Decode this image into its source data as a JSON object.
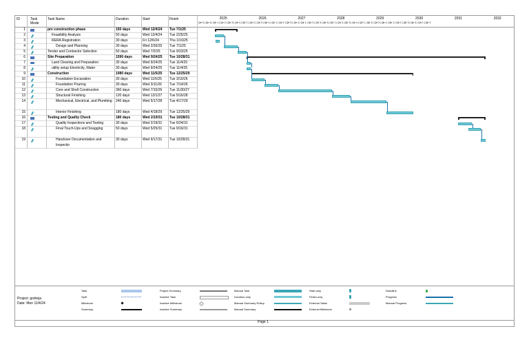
{
  "columns": {
    "id": "ID",
    "mode": "Task Mode",
    "name": "Task Name",
    "duration": "Duration",
    "start": "Start",
    "finish": "Finish"
  },
  "timeline": {
    "years": [
      "2025",
      "2026",
      "2027",
      "2028",
      "2029",
      "2030",
      "2031",
      "2032"
    ],
    "quarters": "Qtr 3 | Qtr 4 | Qtr 1 | Qtr 2 | Qtr 3 | Qtr 4 | Qtr 1 | Qtr 2 | Qtr 3 | Qtr 4 | Qtr 1 | Qtr 2 | Qtr 3 | Qtr 4 | Qtr 1 | Qtr 2 | Qtr 3 | Qtr 4 | Qtr 1 | Qtr 2 | Qtr 3 | Qtr 4 | Qtr 1 | Qtr 2 | Qtr 3 | Qtr 4 | Qtr 1 | Qtr 2 | Qtr 3 | Qtr 4 | Qtr 1 | Qtr 2"
  },
  "tasks": [
    {
      "id": "1",
      "mode": "auto",
      "name": "pre construction phase",
      "duration": "150 days",
      "start": "Wed 12/4/24",
      "finish": "Tue 7/1/25",
      "bold": true,
      "indent": 0
    },
    {
      "id": "2",
      "mode": "manual",
      "name": "Feasibility Analysis",
      "duration": "50 days",
      "start": "Wed 12/4/24",
      "finish": "Tue 2/25/25",
      "indent": 1
    },
    {
      "id": "3",
      "mode": "manual",
      "name": "RERA Registration",
      "duration": "30 days",
      "start": "Fri 12/6/24",
      "finish": "Thu 1/16/25",
      "indent": 1
    },
    {
      "id": "4",
      "mode": "manual",
      "name": "Design and Planning",
      "duration": "30 days",
      "start": "Wed 2/26/25",
      "finish": "Tue 7/1/25",
      "indent": 2
    },
    {
      "id": "5",
      "mode": "manual",
      "name": "Tender and Contractor Selection",
      "duration": "50 days",
      "start": "Wed 7/2/25",
      "finish": "Tue 9/23/25",
      "indent": 0
    },
    {
      "id": "6",
      "mode": "auto",
      "name": "Site Preparation",
      "duration": "1590 days",
      "start": "Wed 9/24/25",
      "finish": "Tue 10/28/31",
      "bold": true,
      "indent": 0
    },
    {
      "id": "7",
      "mode": "task",
      "name": "Land Clearing and Preparation",
      "duration": "30 days",
      "start": "Wed 9/24/25",
      "finish": "Tue 11/4/25",
      "indent": 1
    },
    {
      "id": "8",
      "mode": "manual",
      "name": "utility setup Electricity, Water",
      "duration": "30 days",
      "start": "Wed 9/24/25",
      "finish": "Tue 11/4/25",
      "indent": 1
    },
    {
      "id": "9",
      "mode": "auto",
      "name": "Construction",
      "duration": "1080 days",
      "start": "Wed 11/5/25",
      "finish": "Tue 12/25/29",
      "bold": true,
      "indent": 0
    },
    {
      "id": "10",
      "mode": "manual",
      "name": "Foundation Excavation",
      "duration": "30 days",
      "start": "Wed 11/5/25",
      "finish": "Tue 3/10/26",
      "indent": 2
    },
    {
      "id": "11",
      "mode": "manual",
      "name": "Foundation Pouring",
      "duration": "30 days",
      "start": "Wed 3/11/26",
      "finish": "Tue 7/14/26",
      "indent": 2
    },
    {
      "id": "12",
      "mode": "manual",
      "name": "Core and Shell Construction",
      "duration": "360 days",
      "start": "Wed 7/15/26",
      "finish": "Tue 11/30/27",
      "indent": 2
    },
    {
      "id": "13",
      "mode": "manual",
      "name": "Structural Finishing",
      "duration": "120 days",
      "start": "Wed 12/1/27",
      "finish": "Tue 5/16/28",
      "indent": 2
    },
    {
      "id": "14",
      "mode": "manual",
      "name": "Mechanical, Electrical, and Plumbing",
      "duration": "240 days",
      "start": "Wed 5/17/28",
      "finish": "Tue 4/17/29",
      "indent": 2,
      "tall": true
    },
    {
      "id": "15",
      "mode": "manual",
      "name": "Interior Finishing",
      "duration": "180 days",
      "start": "Wed 4/18/29",
      "finish": "Tue 12/25/29",
      "indent": 2
    },
    {
      "id": "16",
      "mode": "auto",
      "name": "Testing and Quality Check",
      "duration": "180 days",
      "start": "Wed 2/19/31",
      "finish": "Tue 10/28/31",
      "bold": true,
      "indent": 0
    },
    {
      "id": "17",
      "mode": "manual",
      "name": "Quality Inspections and Testing",
      "duration": "30 days",
      "start": "Wed 2/19/31",
      "finish": "Tue 6/24/31",
      "indent": 2
    },
    {
      "id": "18",
      "mode": "manual",
      "name": "Final Touch-Ups and Snagging",
      "duration": "50 days",
      "start": "Wed 5/25/31",
      "finish": "Tue 9/16/31",
      "indent": 2,
      "tall": true
    },
    {
      "id": "19",
      "mode": "manual",
      "name": "Handover Documentation and Inspectio",
      "duration": "30 days",
      "start": "Wed 9/17/31",
      "finish": "Tue 10/28/31",
      "indent": 2,
      "tall": true
    }
  ],
  "legend": {
    "project": "Project: godreja",
    "date": "Date: Mon 11/4/24",
    "items": [
      "Task",
      "Split",
      "Milestone",
      "Summary",
      "Project Summary",
      "Inactive Task",
      "Inactive Milestone",
      "Inactive Summary",
      "Manual Task",
      "Duration-only",
      "Manual Summary Rollup",
      "Manual Summary",
      "Start-only",
      "Finish-only",
      "External Tasks",
      "External Milestone",
      "Deadline",
      "Progress",
      "Manual Progress"
    ]
  },
  "footer": {
    "page": "Page 1"
  },
  "colors": {
    "bar": "#6fc8d6",
    "barBorder": "#3ba6b5",
    "summary": "#222222",
    "task": "#4a74b8",
    "link": "#1a6fa8"
  }
}
